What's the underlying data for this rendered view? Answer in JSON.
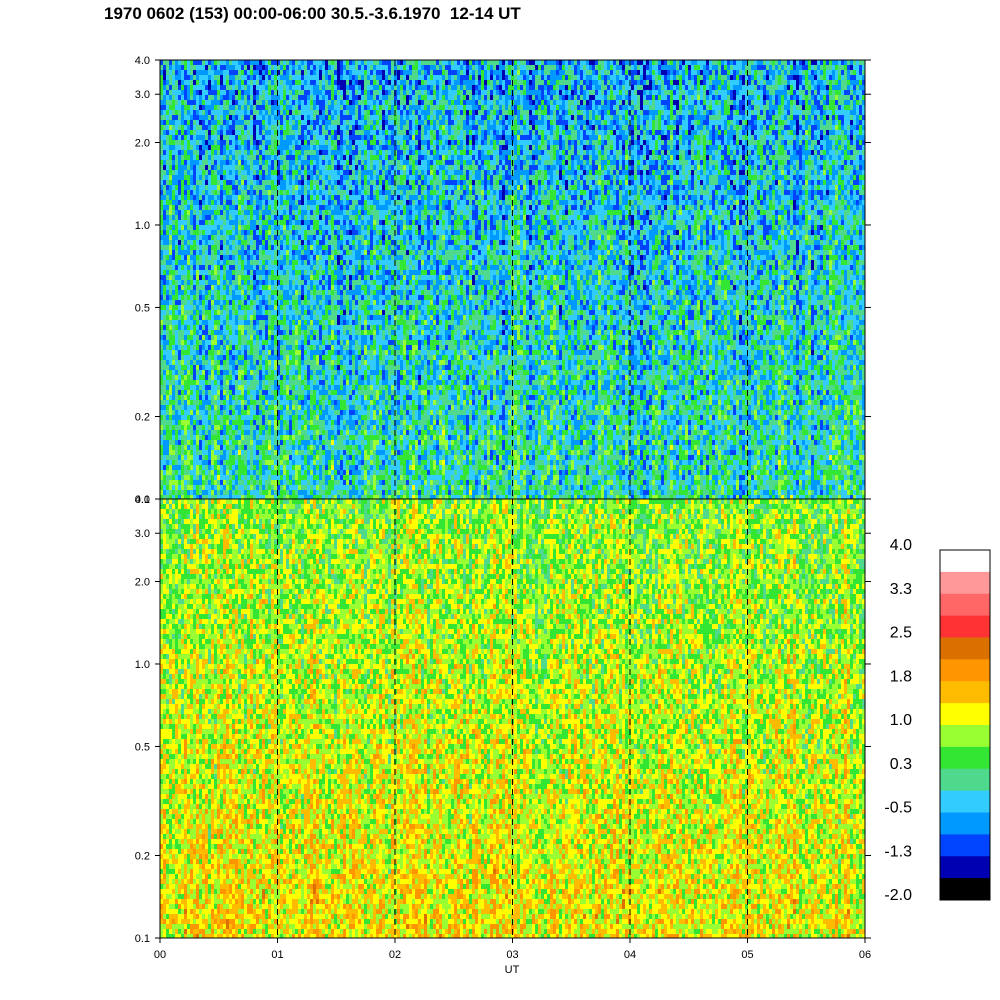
{
  "title": "1970 0602 (153) 00:00-06:00 30.5.-3.6.1970  12-14 UT",
  "chart_data": {
    "type": "heatmap",
    "xlabel": "UT",
    "x_ticks": [
      "00",
      "01",
      "02",
      "03",
      "04",
      "05",
      "06"
    ],
    "xlim": [
      0,
      6
    ],
    "y_scale": "log",
    "panels": [
      {
        "name": "upper",
        "ylim": [
          0.1,
          4.0
        ],
        "y_ticks": [
          0.1,
          0.2,
          0.5,
          1.0,
          2.0,
          3.0,
          4.0
        ],
        "y_tick_labels": [
          "0.1",
          "0.2",
          "0.5",
          "1.0",
          "2.0",
          "3.0",
          "4.0"
        ],
        "level_range": [
          -1.3,
          1.0
        ],
        "typical_level": 0.0
      },
      {
        "name": "lower",
        "ylim": [
          0.1,
          4.0
        ],
        "y_ticks": [
          0.1,
          0.2,
          0.5,
          1.0,
          2.0,
          3.0,
          4.0
        ],
        "y_tick_labels": [
          "0.1",
          "0.2",
          "0.5",
          "1.0",
          "2.0",
          "3.0",
          "4.0"
        ],
        "level_range": [
          0.0,
          2.2
        ],
        "typical_level": 1.3
      }
    ],
    "colorbar": {
      "labels": [
        "4.0",
        "3.3",
        "2.5",
        "1.8",
        "1.0",
        "0.3",
        "-0.5",
        "-1.3",
        "-2.0"
      ],
      "range": [
        -2.0,
        4.0
      ],
      "colors": [
        "#ffffff",
        "#ff9999",
        "#ff6666",
        "#ff3333",
        "#d97000",
        "#ff9600",
        "#ffbb00",
        "#ffff00",
        "#99ff33",
        "#33e633",
        "#4fd98c",
        "#33ccff",
        "#0099ff",
        "#0044ff",
        "#0000b3",
        "#000000"
      ]
    },
    "vertical_dashed_lines_at": [
      1,
      2,
      3,
      4,
      5
    ]
  }
}
